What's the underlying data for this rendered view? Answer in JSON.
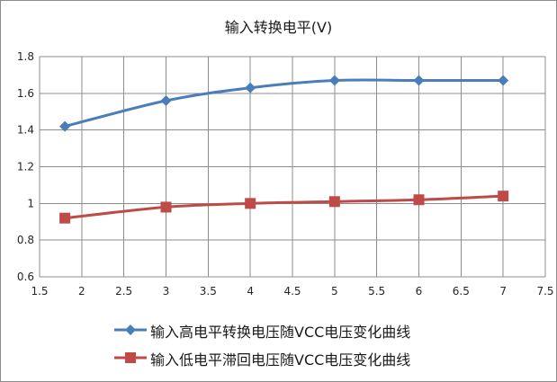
{
  "chart_data": {
    "type": "line",
    "title": "输入转换电平(V)",
    "xlabel": "",
    "ylabel": "",
    "xlim": [
      1.5,
      7.5
    ],
    "ylim": [
      0.6,
      1.8
    ],
    "x_ticks": [
      1.5,
      2,
      2.5,
      3,
      3.5,
      4,
      4.5,
      5,
      5.5,
      6,
      6.5,
      7,
      7.5
    ],
    "y_ticks": [
      0.6,
      0.8,
      1,
      1.2,
      1.4,
      1.6,
      1.8
    ],
    "grid": true,
    "legend_position": "bottom",
    "series": [
      {
        "name": "输入高电平转换电压随VCC电压变化曲线",
        "marker": "diamond",
        "color": "#4a7ebb",
        "x": [
          1.8,
          3,
          4,
          5,
          6,
          7
        ],
        "y": [
          1.42,
          1.56,
          1.63,
          1.67,
          1.67,
          1.67
        ]
      },
      {
        "name": "输入低电平滞回电压随VCC电压变化曲线",
        "marker": "square",
        "color": "#be4b48",
        "x": [
          1.8,
          3,
          4,
          5,
          6,
          7
        ],
        "y": [
          0.92,
          0.98,
          1.0,
          1.01,
          1.02,
          1.04
        ]
      }
    ]
  }
}
